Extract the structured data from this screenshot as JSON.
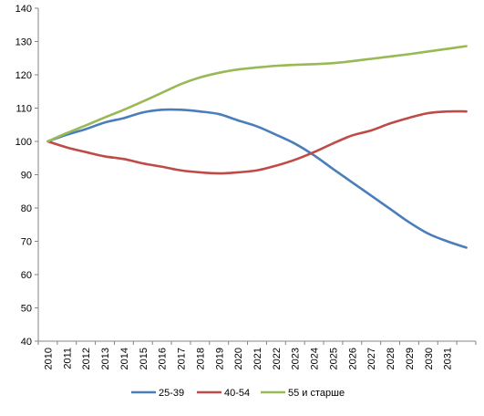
{
  "chart_data": {
    "type": "line",
    "title": "",
    "xlabel": "",
    "ylabel": "",
    "ylim": [
      40,
      140
    ],
    "yticks": [
      40,
      50,
      60,
      70,
      80,
      90,
      100,
      110,
      120,
      130,
      140
    ],
    "x": [
      2010,
      2011,
      2012,
      2013,
      2014,
      2015,
      2016,
      2017,
      2018,
      2019,
      2020,
      2021,
      2022,
      2023,
      2024,
      2025,
      2026,
      2027,
      2028,
      2029,
      2030,
      2031,
      2032
    ],
    "xtick_labels": [
      "2010",
      "2011",
      "2012",
      "2013",
      "2014",
      "2015",
      "2016",
      "2017",
      "2018",
      "2019",
      "2020",
      "2021",
      "2022",
      "2023",
      "2024",
      "2025",
      "2026",
      "2027",
      "2028",
      "2029",
      "2030",
      "2031",
      ""
    ],
    "grid": false,
    "legend_position": "bottom",
    "series": [
      {
        "name": "25-39",
        "color": "#4a7ebb",
        "values": [
          100,
          102,
          103.7,
          105.7,
          107,
          108.7,
          109.5,
          109.5,
          109,
          108.2,
          106.3,
          104.5,
          102,
          99.3,
          95.8,
          91.7,
          87.7,
          83.7,
          79.7,
          75.7,
          72.3,
          70,
          68.1
        ]
      },
      {
        "name": "40-54",
        "color": "#be4b48",
        "values": [
          100,
          98.2,
          96.8,
          95.5,
          94.7,
          93.4,
          92.4,
          91.3,
          90.7,
          90.4,
          90.7,
          91.3,
          92.7,
          94.5,
          96.8,
          99.4,
          101.8,
          103.3,
          105.4,
          107.1,
          108.5,
          109,
          109
        ]
      },
      {
        "name": "55 и старше",
        "color": "#98b954",
        "values": [
          100,
          102.5,
          104.8,
          107.2,
          109.5,
          112,
          114.6,
          117.2,
          119.2,
          120.6,
          121.6,
          122.2,
          122.7,
          123,
          123.2,
          123.5,
          124.1,
          124.8,
          125.5,
          126.2,
          127,
          127.8,
          128.6
        ]
      }
    ]
  }
}
